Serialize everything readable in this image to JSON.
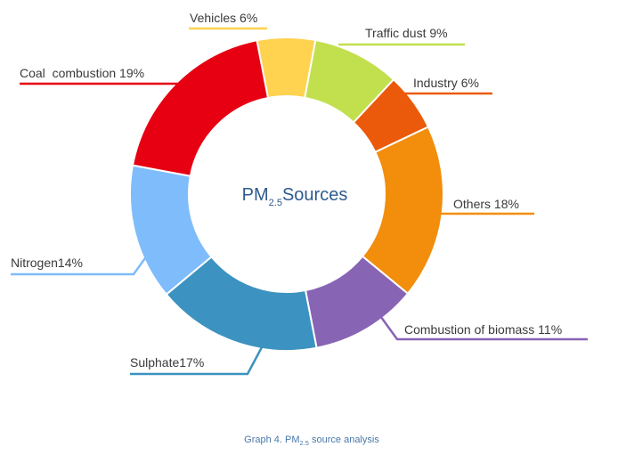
{
  "chart_data": {
    "type": "pie",
    "donut": true,
    "center_title": {
      "main": "PM",
      "sub": "2.5",
      "rest": "Sources"
    },
    "caption": {
      "prefix": "Graph 4. PM",
      "sub": "2.5",
      "suffix": " source analysis"
    },
    "slices": [
      {
        "label": "Vehicles 6%",
        "value": 6,
        "color": "#ffd24f"
      },
      {
        "label": "Traffic dust 9%",
        "value": 9,
        "color": "#c2df4e"
      },
      {
        "label": "Industry 6%",
        "value": 6,
        "color": "#ea5a0a"
      },
      {
        "label": "Others 18%",
        "value": 18,
        "color": "#f28e0c"
      },
      {
        "label": "Combustion of biomass 11%",
        "value": 11,
        "color": "#8864b5"
      },
      {
        "label": "Sulphate17%",
        "value": 17,
        "color": "#3c92c0"
      },
      {
        "label": "Nitrogen14%",
        "value": 14,
        "color": "#7fbcfb"
      },
      {
        "label": "Coal  combustion 19%",
        "value": 19,
        "color": "#e60012"
      }
    ]
  }
}
